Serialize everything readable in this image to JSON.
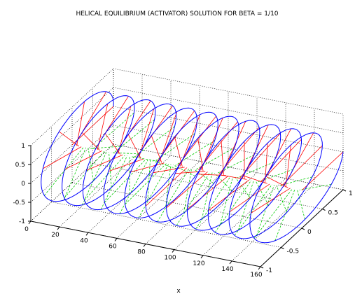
{
  "chart_data": {
    "type": "3d-line",
    "title": "HELICAL EQUILIBRIUM (ACTIVATOR) SOLUTION FOR BETA = 1/10",
    "xlabel": "x",
    "ylabel": "",
    "zlabel": "",
    "xlim": [
      0,
      160
    ],
    "ylim": [
      -1,
      1
    ],
    "zlim": [
      -1,
      1
    ],
    "x_ticks": [
      "0",
      "20",
      "40",
      "60",
      "80",
      "100",
      "120",
      "140",
      "160"
    ],
    "y_ticks": [
      "-1",
      "-0.5",
      "0",
      "0.5",
      "1"
    ],
    "z_ticks": [
      "-1",
      "-0.5",
      "0",
      "0.5",
      "1"
    ],
    "grid": true,
    "helix": {
      "amplitude": 1,
      "turns": 11,
      "x_range": [
        0,
        160
      ]
    },
    "series": [
      {
        "style": "solid",
        "color": "#0000ff"
      },
      {
        "style": "solid",
        "color": "#ff0000"
      },
      {
        "style": "dashed",
        "color": "#00cc00"
      }
    ]
  }
}
